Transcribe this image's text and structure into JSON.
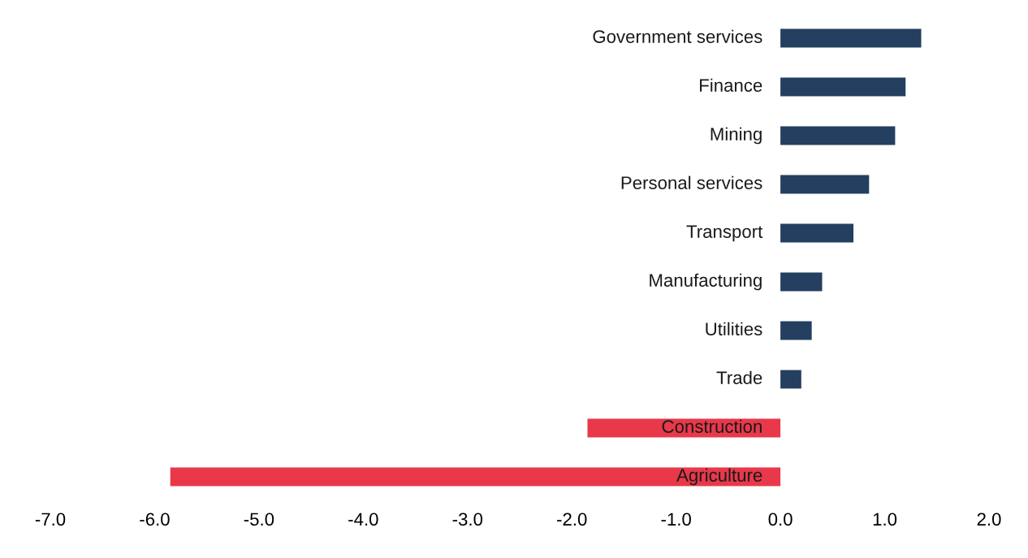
{
  "chart_data": {
    "type": "bar",
    "orientation": "horizontal",
    "categories": [
      "Government services",
      "Finance",
      "Mining",
      "Personal services",
      "Transport",
      "Manufacturing",
      "Utilities",
      "Trade",
      "Construction",
      "Agriculture"
    ],
    "values": [
      1.35,
      1.2,
      1.1,
      0.85,
      0.7,
      0.4,
      0.3,
      0.2,
      -1.85,
      -5.85
    ],
    "colors": [
      "#243f60",
      "#243f60",
      "#243f60",
      "#243f60",
      "#243f60",
      "#243f60",
      "#243f60",
      "#243f60",
      "#e8384a",
      "#e8384a"
    ],
    "xlim": [
      -7,
      2
    ],
    "xticks": [
      {
        "value": -7,
        "label": "-7.0"
      },
      {
        "value": -6,
        "label": "-6.0"
      },
      {
        "value": -5,
        "label": "-5.0"
      },
      {
        "value": -4,
        "label": "-4.0"
      },
      {
        "value": -3,
        "label": "-3.0"
      },
      {
        "value": -2,
        "label": "-2.0"
      },
      {
        "value": -1,
        "label": "-1.0"
      },
      {
        "value": 0,
        "label": "0.0"
      },
      {
        "value": 1,
        "label": "1.0"
      },
      {
        "value": 2,
        "label": "2.0"
      }
    ],
    "grid": false
  }
}
